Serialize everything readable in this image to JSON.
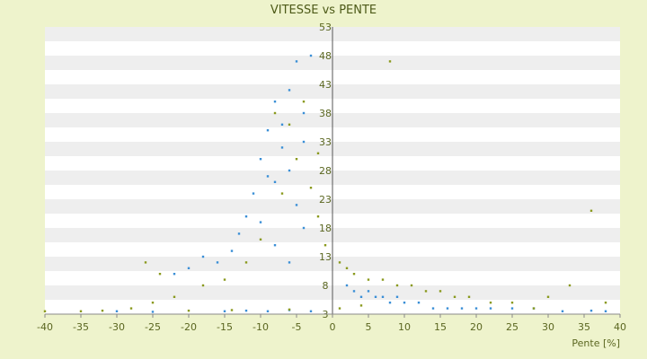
{
  "chart_data": {
    "type": "scatter",
    "title": "VITESSE vs PENTE",
    "xlabel": "Pente [%]",
    "ylabel": "",
    "xlim": [
      -40,
      40
    ],
    "ylim": [
      3,
      53
    ],
    "x_ticks": [
      -40,
      -35,
      -30,
      -25,
      -20,
      -15,
      -10,
      -5,
      0,
      5,
      10,
      15,
      20,
      25,
      30,
      35,
      40
    ],
    "y_ticks": [
      3,
      8,
      13,
      18,
      23,
      28,
      33,
      38,
      43,
      48,
      53
    ],
    "grid": "horizontal alternating bands",
    "legend": "none",
    "colors": {
      "background": "#eef3cc",
      "plot_band_light": "#ffffff",
      "plot_band_dark": "#eeeeee",
      "series_1": "#3a8fd6",
      "series_2": "#8a9a1e",
      "axis": "#555555"
    },
    "series": [
      {
        "color": "#3a8fd6",
        "points": [
          [
            -10,
            30
          ],
          [
            -9,
            35
          ],
          [
            -8,
            26
          ],
          [
            -7,
            32
          ],
          [
            -6,
            42
          ],
          [
            -5,
            47
          ],
          [
            -4,
            38
          ],
          [
            -11,
            24
          ],
          [
            -12,
            20
          ],
          [
            -8,
            40
          ],
          [
            -6,
            28
          ],
          [
            -5,
            22
          ],
          [
            -9,
            27
          ],
          [
            -7,
            36
          ],
          [
            -4,
            33
          ],
          [
            -3,
            48
          ],
          [
            -10,
            19
          ],
          [
            -13,
            17
          ],
          [
            -14,
            14
          ],
          [
            -16,
            12
          ],
          [
            -18,
            13
          ],
          [
            -20,
            11
          ],
          [
            -22,
            10
          ],
          [
            -8,
            15
          ],
          [
            -6,
            12
          ],
          [
            -4,
            18
          ],
          [
            2,
            8
          ],
          [
            3,
            7
          ],
          [
            4,
            6
          ],
          [
            5,
            7
          ],
          [
            6,
            6
          ],
          [
            7,
            6
          ],
          [
            8,
            5
          ],
          [
            9,
            6
          ],
          [
            10,
            5
          ],
          [
            12,
            5
          ],
          [
            14,
            4
          ],
          [
            16,
            4
          ],
          [
            18,
            4
          ],
          [
            20,
            4
          ],
          [
            22,
            4
          ],
          [
            25,
            4
          ],
          [
            28,
            4
          ],
          [
            32,
            3.5
          ],
          [
            36,
            3.6
          ],
          [
            38,
            3.5
          ],
          [
            -15,
            3.5
          ],
          [
            -12,
            3.6
          ],
          [
            -9,
            3.5
          ],
          [
            -6,
            3.7
          ],
          [
            -3,
            3.5
          ],
          [
            -25,
            3.4
          ],
          [
            -30,
            3.5
          ]
        ]
      },
      {
        "color": "#8a9a1e",
        "points": [
          [
            -8,
            38
          ],
          [
            -6,
            36
          ],
          [
            -4,
            40
          ],
          [
            -5,
            30
          ],
          [
            -7,
            24
          ],
          [
            -3,
            25
          ],
          [
            -2,
            31
          ],
          [
            -10,
            16
          ],
          [
            -12,
            12
          ],
          [
            -15,
            9
          ],
          [
            -18,
            8
          ],
          [
            -22,
            6
          ],
          [
            -25,
            5
          ],
          [
            -28,
            4
          ],
          [
            -26,
            12
          ],
          [
            -24,
            10
          ],
          [
            -2,
            20
          ],
          [
            -1,
            15
          ],
          [
            1,
            12
          ],
          [
            2,
            11
          ],
          [
            3,
            10
          ],
          [
            5,
            9
          ],
          [
            7,
            9
          ],
          [
            9,
            8
          ],
          [
            11,
            8
          ],
          [
            13,
            7
          ],
          [
            15,
            7
          ],
          [
            17,
            6
          ],
          [
            19,
            6
          ],
          [
            22,
            5
          ],
          [
            25,
            5
          ],
          [
            28,
            4
          ],
          [
            30,
            6
          ],
          [
            33,
            8
          ],
          [
            36,
            21
          ],
          [
            38,
            5
          ],
          [
            8,
            47
          ],
          [
            -35,
            3.5
          ],
          [
            -40,
            3.5
          ],
          [
            -32,
            3.6
          ],
          [
            -20,
            3.6
          ],
          [
            -14,
            3.7
          ],
          [
            -6,
            3.8
          ],
          [
            1,
            4
          ],
          [
            4,
            4.5
          ]
        ]
      }
    ]
  }
}
